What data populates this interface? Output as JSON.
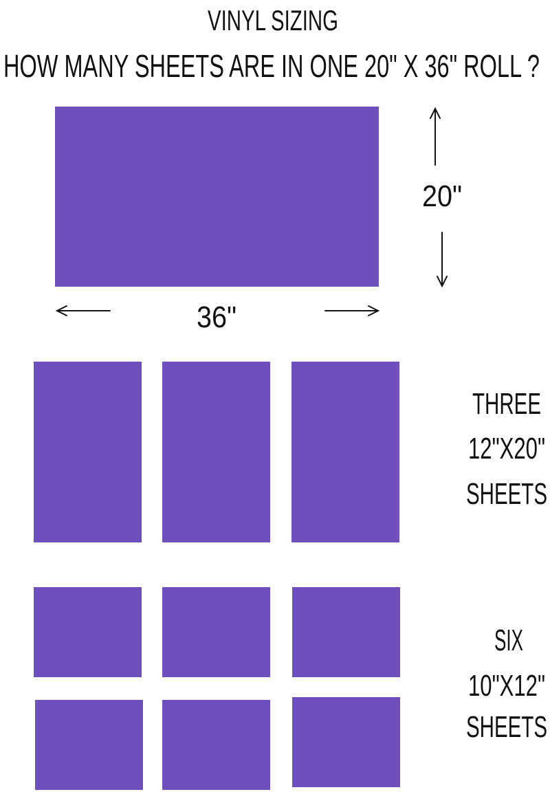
{
  "title": "VINYL SIZING",
  "subtitle": "HOW MANY SHEETS ARE IN ONE 20\" X 36\" ROLL ?",
  "sheet_color": "#6e4fbb",
  "roll": {
    "height_label": "20\"",
    "width_label": "36\""
  },
  "option_three": {
    "line1": "THREE",
    "line2": "12\"X20\"",
    "line3": "SHEETS",
    "count": 3
  },
  "option_six": {
    "line1": "SIX",
    "line2": "10\"X12\"",
    "line3": "SHEETS",
    "count": 6
  }
}
